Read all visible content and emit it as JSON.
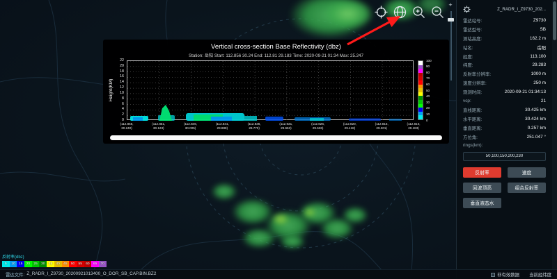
{
  "toolbar": {
    "icons": [
      "crosshair-icon",
      "capture-icon",
      "zoom-in-icon",
      "zoom-out-icon"
    ]
  },
  "map_controls": {
    "zoom_plus": "+"
  },
  "chart": {
    "title": "Vertical cross-section Base Reflectivity (dbz)",
    "subtitle": "Station: 岳阳 Start: 112.856 30.24 End: 112.81 29.183 Time: 2020-09-21 01:34 Max: 25.247",
    "ylabel": "Height(KM)",
    "yticks": [
      0,
      2,
      4,
      6,
      8,
      10,
      12,
      14,
      16,
      18,
      20,
      22
    ],
    "xticks": [
      [
        "(112.856,",
        "30.240)"
      ],
      [
        "(112.851,",
        "30.123)"
      ],
      [
        "(112.846,",
        "30.005)"
      ],
      [
        "(112.841,",
        "29.888)"
      ],
      [
        "(112.836,",
        "29.770)"
      ],
      [
        "(112.831,",
        "29.653)"
      ],
      [
        "(112.826,",
        "29.536)"
      ],
      [
        "(112.820,",
        "29.418)"
      ],
      [
        "(112.815,",
        "29.301)"
      ],
      [
        "(112.810,",
        "29.183)"
      ]
    ],
    "colorbar": {
      "labels": [
        100,
        90,
        80,
        70,
        60,
        50,
        40,
        30,
        20,
        10,
        0
      ],
      "colors": [
        "#ffffff",
        "#9854c6",
        "#ff00ff",
        "#c00000",
        "#d60000",
        "#ff0000",
        "#ff9000",
        "#e7c000",
        "#ffff00",
        "#009000",
        "#00c800",
        "#00ff00",
        "#0000f6",
        "#01a0f6",
        "#00ecec"
      ]
    }
  },
  "panel": {
    "title": "Z_RADR_I_Z9730_202...",
    "rows": [
      {
        "label": "雷达站号:",
        "value": "Z9730"
      },
      {
        "label": "雷达型号:",
        "value": "SB"
      },
      {
        "label": "测站高度:",
        "value": "162.2 m"
      },
      {
        "label": "站名:",
        "value": "岳阳"
      },
      {
        "label": "经度:",
        "value": "113.100"
      },
      {
        "label": "纬度:",
        "value": "29.283"
      },
      {
        "label": "反射率分辨率:",
        "value": "1000 m"
      },
      {
        "label": "速度分辨率:",
        "value": "250 m"
      },
      {
        "label": "观测时间:",
        "value": "2020-09-21 01:34:13"
      },
      {
        "label": "vcp:",
        "value": "21"
      },
      {
        "label": "直线距离:",
        "value": "30.425 km"
      },
      {
        "label": "水平距离:",
        "value": "30.424 km"
      },
      {
        "label": "垂直距离:",
        "value": "0.257 km"
      },
      {
        "label": "方位角:",
        "value": "251.047 °"
      }
    ],
    "rings_label": "rings(km):",
    "rings_value": "50,100,150,200,230",
    "buttons": [
      {
        "name": "reflectivity-button",
        "label": "反射率",
        "active": true
      },
      {
        "name": "velocity-button",
        "label": "速度",
        "active": false
      },
      {
        "name": "echo-top-button",
        "label": "回波顶高",
        "active": false
      },
      {
        "name": "composite-reflectivity-button",
        "label": "组合反射率",
        "active": false
      },
      {
        "name": "vil-button",
        "label": "垂直液态水",
        "active": false
      }
    ],
    "accent_color": "#df3b2f"
  },
  "legend": {
    "title": "反射率(dbz)",
    "values": [
      5,
      10,
      15,
      20,
      25,
      30,
      35,
      40,
      45,
      50,
      55,
      60,
      65,
      70
    ],
    "colors": [
      "#00ecec",
      "#01a0f6",
      "#0000f6",
      "#00ff00",
      "#00c800",
      "#009000",
      "#ffff00",
      "#e7c000",
      "#ff9000",
      "#ff0000",
      "#d60000",
      "#c00000",
      "#ff00ff",
      "#9854c6"
    ]
  },
  "statusbar": {
    "file_label": "雷达文件:",
    "file_value": "Z_RADR_I_Z9730_20200921013400_O_DOR_SB_CAP.BIN.BZ2",
    "invalid_label": "非有效数据",
    "coord_label": "当前经纬度"
  }
}
